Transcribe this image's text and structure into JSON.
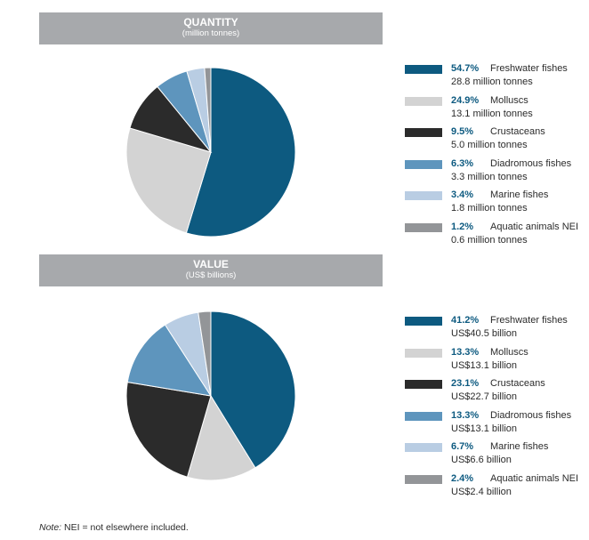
{
  "chart_data": [
    {
      "type": "pie",
      "title": "QUANTITY",
      "subtitle": "(million tonnes)",
      "slices": [
        {
          "label": "Freshwater fishes",
          "percent": 54.7,
          "percent_text": "54.7%",
          "amount_text": "28.8 million tonnes",
          "value": 28.8,
          "color": "#0d5a80"
        },
        {
          "label": "Molluscs",
          "percent": 24.9,
          "percent_text": "24.9%",
          "amount_text": "13.1 million tonnes",
          "value": 13.1,
          "color": "#d3d3d3"
        },
        {
          "label": "Crustaceans",
          "percent": 9.5,
          "percent_text": "9.5%",
          "amount_text": "5.0 million tonnes",
          "value": 5.0,
          "color": "#2b2b2b"
        },
        {
          "label": "Diadromous fishes",
          "percent": 6.3,
          "percent_text": "6.3%",
          "amount_text": "3.3 million tonnes",
          "value": 3.3,
          "color": "#5e95bd"
        },
        {
          "label": "Marine fishes",
          "percent": 3.4,
          "percent_text": "3.4%",
          "amount_text": "1.8 million tonnes",
          "value": 1.8,
          "color": "#b9cde3"
        },
        {
          "label": "Aquatic animals NEI",
          "percent": 1.2,
          "percent_text": "1.2%",
          "amount_text": "0.6 million tonnes",
          "value": 0.6,
          "color": "#939598"
        }
      ]
    },
    {
      "type": "pie",
      "title": "VALUE",
      "subtitle": "(US$ billions)",
      "slices": [
        {
          "label": "Freshwater fishes",
          "percent": 41.2,
          "percent_text": "41.2%",
          "amount_text": "US$40.5 billion",
          "value": 40.5,
          "color": "#0d5a80"
        },
        {
          "label": "Molluscs",
          "percent": 13.3,
          "percent_text": "13.3%",
          "amount_text": "US$13.1 billion",
          "value": 13.1,
          "color": "#d3d3d3"
        },
        {
          "label": "Crustaceans",
          "percent": 23.1,
          "percent_text": "23.1%",
          "amount_text": "US$22.7 billion",
          "value": 22.7,
          "color": "#2b2b2b"
        },
        {
          "label": "Diadromous fishes",
          "percent": 13.3,
          "percent_text": "13.3%",
          "amount_text": "US$13.1 billion",
          "value": 13.1,
          "color": "#5e95bd"
        },
        {
          "label": "Marine fishes",
          "percent": 6.7,
          "percent_text": "6.7%",
          "amount_text": "US$6.6 billion",
          "value": 6.6,
          "color": "#b9cde3"
        },
        {
          "label": "Aquatic animals NEI",
          "percent": 2.4,
          "percent_text": "2.4%",
          "amount_text": "US$2.4 billion",
          "value": 2.4,
          "color": "#939598"
        }
      ]
    }
  ],
  "note": {
    "label": "Note:",
    "text": " NEI = not elsewhere included."
  }
}
